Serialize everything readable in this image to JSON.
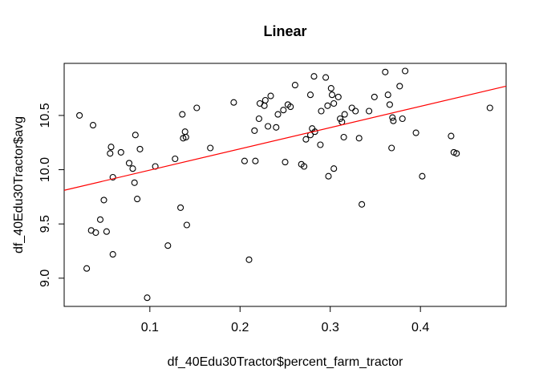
{
  "figure": {
    "background": "#ffffff",
    "frame_color": "#000000"
  },
  "chart_data": {
    "type": "scatter",
    "title": "Linear",
    "xlabel": "df_40Edu30Tractor$percent_farm_tractor",
    "ylabel": "df_40Edu30Tractor$avg",
    "grid": false,
    "legend": null,
    "xlim": [
      0.005,
      0.495
    ],
    "ylim": [
      8.74,
      10.98
    ],
    "x_ticks": {
      "values": [
        0.1,
        0.2,
        0.3,
        0.4
      ],
      "labels": [
        "0.1",
        "0.2",
        "0.3",
        "0.4"
      ]
    },
    "y_ticks": {
      "values": [
        9.0,
        9.5,
        10.0,
        10.5
      ],
      "labels": [
        "9.0",
        "9.5",
        "10.0",
        "10.5"
      ]
    },
    "marker": {
      "shape": "open-circle",
      "color": "#000000",
      "radius": 3.5
    },
    "regression_line": {
      "color": "#ff0000",
      "x1": 0.005,
      "y1": 9.81,
      "x2": 0.495,
      "y2": 10.77
    },
    "points": [
      [
        0.022,
        10.5
      ],
      [
        0.037,
        10.41
      ],
      [
        0.084,
        10.32
      ],
      [
        0.057,
        10.21
      ],
      [
        0.056,
        10.15
      ],
      [
        0.068,
        10.16
      ],
      [
        0.089,
        10.19
      ],
      [
        0.077,
        10.06
      ],
      [
        0.081,
        10.01
      ],
      [
        0.059,
        9.93
      ],
      [
        0.083,
        9.88
      ],
      [
        0.136,
        10.51
      ],
      [
        0.152,
        10.57
      ],
      [
        0.139,
        10.35
      ],
      [
        0.137,
        10.29
      ],
      [
        0.14,
        10.3
      ],
      [
        0.128,
        10.1
      ],
      [
        0.106,
        10.03
      ],
      [
        0.167,
        10.2
      ],
      [
        0.193,
        10.62
      ],
      [
        0.261,
        10.78
      ],
      [
        0.282,
        10.86
      ],
      [
        0.295,
        10.85
      ],
      [
        0.301,
        10.75
      ],
      [
        0.302,
        10.69
      ],
      [
        0.309,
        10.67
      ],
      [
        0.278,
        10.69
      ],
      [
        0.234,
        10.68
      ],
      [
        0.228,
        10.64
      ],
      [
        0.222,
        10.61
      ],
      [
        0.227,
        10.59
      ],
      [
        0.253,
        10.6
      ],
      [
        0.256,
        10.58
      ],
      [
        0.248,
        10.55
      ],
      [
        0.242,
        10.51
      ],
      [
        0.221,
        10.47
      ],
      [
        0.231,
        10.4
      ],
      [
        0.24,
        10.39
      ],
      [
        0.28,
        10.38
      ],
      [
        0.283,
        10.35
      ],
      [
        0.278,
        10.32
      ],
      [
        0.273,
        10.28
      ],
      [
        0.289,
        10.23
      ],
      [
        0.29,
        10.54
      ],
      [
        0.297,
        10.59
      ],
      [
        0.304,
        10.61
      ],
      [
        0.316,
        10.51
      ],
      [
        0.311,
        10.47
      ],
      [
        0.313,
        10.44
      ],
      [
        0.315,
        10.3
      ],
      [
        0.205,
        10.08
      ],
      [
        0.217,
        10.08
      ],
      [
        0.25,
        10.07
      ],
      [
        0.268,
        10.05
      ],
      [
        0.271,
        10.03
      ],
      [
        0.298,
        9.94
      ],
      [
        0.304,
        10.01
      ],
      [
        0.324,
        10.57
      ],
      [
        0.328,
        10.54
      ],
      [
        0.216,
        10.36
      ],
      [
        0.361,
        10.9
      ],
      [
        0.383,
        10.91
      ],
      [
        0.377,
        10.77
      ],
      [
        0.349,
        10.67
      ],
      [
        0.364,
        10.69
      ],
      [
        0.366,
        10.6
      ],
      [
        0.343,
        10.54
      ],
      [
        0.369,
        10.48
      ],
      [
        0.37,
        10.45
      ],
      [
        0.38,
        10.47
      ],
      [
        0.477,
        10.57
      ],
      [
        0.332,
        10.29
      ],
      [
        0.395,
        10.34
      ],
      [
        0.434,
        10.31
      ],
      [
        0.368,
        10.2
      ],
      [
        0.437,
        10.16
      ],
      [
        0.44,
        10.15
      ],
      [
        0.402,
        9.94
      ],
      [
        0.049,
        9.72
      ],
      [
        0.086,
        9.73
      ],
      [
        0.045,
        9.54
      ],
      [
        0.035,
        9.44
      ],
      [
        0.04,
        9.42
      ],
      [
        0.052,
        9.43
      ],
      [
        0.059,
        9.22
      ],
      [
        0.03,
        9.09
      ],
      [
        0.097,
        8.82
      ],
      [
        0.134,
        9.65
      ],
      [
        0.141,
        9.49
      ],
      [
        0.12,
        9.3
      ],
      [
        0.21,
        9.17
      ],
      [
        0.335,
        9.68
      ]
    ]
  }
}
